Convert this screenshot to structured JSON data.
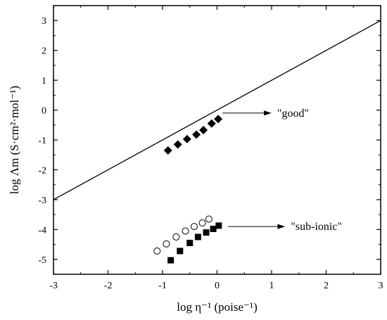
{
  "chart_data": {
    "type": "scatter",
    "xlabel": "log η⁻¹ (poise⁻¹)",
    "ylabel": "log Λm (S·cm²·mol⁻¹)",
    "xlim": [
      -3,
      3
    ],
    "ylim": [
      -5.5,
      3.5
    ],
    "x_ticks": [
      "-3",
      "-2",
      "-1",
      "0",
      "1",
      "2",
      "3"
    ],
    "y_ticks": [
      "-5",
      "-4",
      "-3",
      "-2",
      "-1",
      "0",
      "1",
      "2",
      "3"
    ],
    "grid": false,
    "reference_line": {
      "x": [
        -3,
        3
      ],
      "y": [
        -3,
        3
      ]
    },
    "series": [
      {
        "marker": "filled-diamond",
        "x": [
          -0.9,
          -0.72,
          -0.55,
          -0.38,
          -0.25,
          -0.1,
          0.02
        ],
        "y": [
          -1.35,
          -1.15,
          -0.97,
          -0.82,
          -0.67,
          -0.45,
          -0.3
        ]
      },
      {
        "marker": "open-circle",
        "x": [
          -1.1,
          -0.93,
          -0.75,
          -0.58,
          -0.42,
          -0.27,
          -0.15
        ],
        "y": [
          -4.72,
          -4.48,
          -4.25,
          -4.05,
          -3.9,
          -3.78,
          -3.65
        ]
      },
      {
        "marker": "filled-square",
        "x": [
          -0.85,
          -0.68,
          -0.5,
          -0.35,
          -0.2,
          -0.07,
          0.03
        ],
        "y": [
          -5.03,
          -4.72,
          -4.45,
          -4.25,
          -4.1,
          -3.98,
          -3.87
        ]
      }
    ],
    "annotations": [
      {
        "text": "\"good\"",
        "arrow_from": [
          0.1,
          -0.1
        ],
        "arrow_to": [
          1.0,
          -0.1
        ]
      },
      {
        "text": "\"sub-ionic\"",
        "arrow_from": [
          0.2,
          -3.9
        ],
        "arrow_to": [
          1.25,
          -3.9
        ]
      }
    ]
  }
}
